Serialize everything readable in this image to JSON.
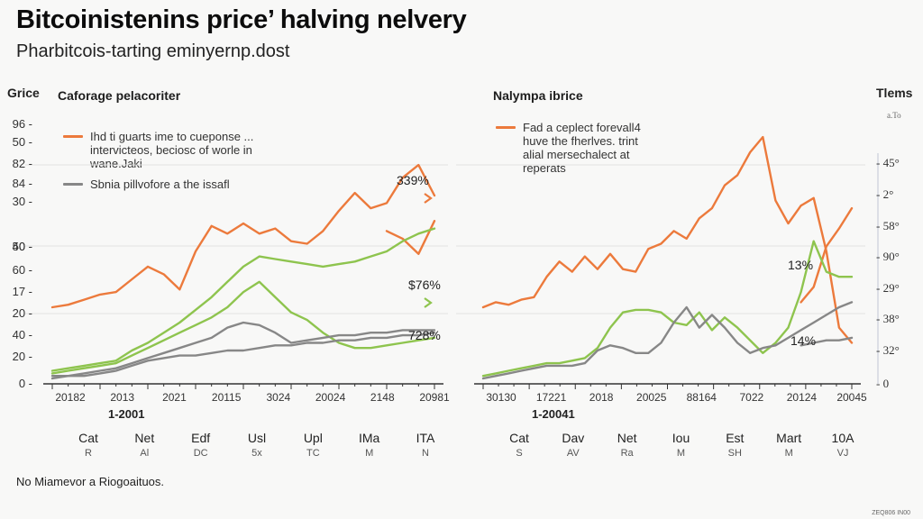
{
  "header": {
    "title": "Bitcoinistenins price’ halving nelvery",
    "subtitle": "Pharbitcois-tarting eminyernp.dost"
  },
  "footer": {
    "note": "No Miamevor a Riogoaituos.",
    "credit": "ZEQ806 IN00"
  },
  "colors": {
    "orange": "#ec7a3c",
    "green": "#8ec44e",
    "gray": "#878787",
    "grid": "#e2e2e2",
    "axis": "#333333"
  },
  "chart_data": [
    {
      "type": "line",
      "title": "Caforage pelacoriter",
      "ylabel": "Grice",
      "xlabel": "1-2001",
      "ylim": [
        0,
        100
      ],
      "grid": true,
      "legend_position": "top-left",
      "y_tick_labels": [
        "96",
        "50",
        "82",
        "84",
        "30",
        "50",
        "40",
        "60",
        "17",
        "20",
        "40",
        "20",
        "0"
      ],
      "x_tick_labels": [
        "20182",
        "2013",
        "2021",
        "20115",
        "3024",
        "20024",
        "2148",
        "20981"
      ],
      "categories": [
        {
          "name": "Cat",
          "sub": "R"
        },
        {
          "name": "Net",
          "sub": "Al"
        },
        {
          "name": "Edf",
          "sub": "DC"
        },
        {
          "name": "Usl",
          "sub": "5x"
        },
        {
          "name": "Upl",
          "sub": "TC"
        },
        {
          "name": "IMa",
          "sub": "M"
        },
        {
          "name": "ITA",
          "sub": "N"
        }
      ],
      "legend": [
        {
          "label": "Ihd ti guarts ime to cueponse ... intervicteos, beciosc of worle in wane.Jaki",
          "color_key": "orange"
        },
        {
          "label": "Sbnia pillvofore a the issafl",
          "color_key": "gray"
        }
      ],
      "annotations": [
        {
          "text": "339%",
          "series": "orange"
        },
        {
          "text": "$76%",
          "series": "green"
        },
        {
          "text": "728%",
          "series": "gray"
        }
      ],
      "x": [
        0,
        1,
        2,
        3,
        4,
        5,
        6,
        7,
        8,
        9,
        10,
        11,
        12,
        13,
        14,
        15,
        16,
        17,
        18,
        19,
        20,
        21,
        22,
        23,
        24
      ],
      "series": [
        {
          "name": "orange",
          "color_key": "orange",
          "values": [
            28,
            29,
            31,
            33,
            34,
            39,
            44,
            41,
            35,
            50,
            60,
            57,
            61,
            57,
            59,
            54,
            53,
            58,
            66,
            73,
            67,
            69,
            79,
            84,
            72
          ]
        },
        {
          "name": "orange-tail",
          "color_key": "orange",
          "x": [
            21,
            22,
            23,
            24
          ],
          "values": [
            58,
            55,
            49,
            62
          ]
        },
        {
          "name": "green-a",
          "color_key": "green",
          "values": [
            3,
            4,
            5,
            6,
            7,
            11,
            14,
            18,
            22,
            27,
            32,
            38,
            44,
            48,
            47,
            46,
            45,
            44,
            45,
            46,
            48,
            50,
            54,
            57,
            59
          ]
        },
        {
          "name": "green-b",
          "color_key": "green",
          "values": [
            2,
            3,
            4,
            5,
            6,
            9,
            12,
            15,
            18,
            21,
            24,
            28,
            34,
            38,
            32,
            26,
            23,
            18,
            14,
            12,
            12,
            13,
            14,
            15,
            16
          ]
        },
        {
          "name": "gray-a",
          "color_key": "gray",
          "values": [
            1,
            1,
            2,
            3,
            4,
            6,
            8,
            10,
            12,
            14,
            16,
            20,
            22,
            21,
            18,
            14,
            15,
            16,
            17,
            17,
            18,
            18,
            19,
            19,
            19
          ]
        },
        {
          "name": "gray-b",
          "color_key": "gray",
          "values": [
            0,
            1,
            1,
            2,
            3,
            5,
            7,
            8,
            9,
            9,
            10,
            11,
            11,
            12,
            13,
            13,
            14,
            14,
            15,
            15,
            16,
            16,
            17,
            17,
            18
          ]
        }
      ]
    },
    {
      "type": "line",
      "title": "Nalympa ibrice",
      "ylabel": "Tlems",
      "ylabel_sub": "a.To",
      "xlabel": "1-20041",
      "ylim": [
        0,
        100
      ],
      "grid": true,
      "legend_position": "top-left",
      "y_tick_labels": [
        "45°",
        "2°",
        "58°",
        "90°",
        "29°",
        "38°",
        "32°",
        "0"
      ],
      "x_tick_labels": [
        "30130",
        "17221",
        "2018",
        "20025",
        "88164",
        "7022",
        "20124",
        "20045"
      ],
      "categories": [
        {
          "name": "Cat",
          "sub": "S"
        },
        {
          "name": "Dav",
          "sub": "AV"
        },
        {
          "name": "Net",
          "sub": "Ra"
        },
        {
          "name": "Iou",
          "sub": "M"
        },
        {
          "name": "Est",
          "sub": "SH"
        },
        {
          "name": "Mart",
          "sub": "M"
        },
        {
          "name": "10A",
          "sub": "VJ"
        }
      ],
      "legend": [
        {
          "label": "Fad a ceplect forevall4 huve the fherlves. trint alial mersechalect at reperats",
          "color_key": "orange"
        }
      ],
      "annotations": [
        {
          "text": "13%",
          "series": "orange"
        },
        {
          "text": "14%",
          "series": "gray"
        }
      ],
      "x": [
        0,
        1,
        2,
        3,
        4,
        5,
        6,
        7,
        8,
        9,
        10,
        11,
        12,
        13,
        14,
        15,
        16,
        17,
        18,
        19,
        20,
        21,
        22,
        23,
        24,
        25,
        26,
        27,
        28,
        29
      ],
      "series": [
        {
          "name": "orange",
          "color_key": "orange",
          "values": [
            28,
            30,
            29,
            31,
            32,
            40,
            46,
            42,
            48,
            43,
            49,
            43,
            42,
            51,
            53,
            58,
            55,
            63,
            67,
            76,
            80,
            89,
            95,
            70,
            61,
            68,
            71,
            50,
            20,
            14
          ]
        },
        {
          "name": "orange-rebound",
          "color_key": "orange",
          "x": [
            25,
            26,
            27,
            28,
            29
          ],
          "values": [
            30,
            36,
            52,
            59,
            67
          ]
        },
        {
          "name": "green",
          "color_key": "green",
          "values": [
            1,
            2,
            3,
            4,
            5,
            6,
            6,
            7,
            8,
            12,
            20,
            26,
            27,
            27,
            26,
            22,
            21,
            26,
            19,
            24,
            20,
            15,
            10,
            14,
            20,
            34,
            54,
            42,
            40,
            40
          ]
        },
        {
          "name": "gray",
          "color_key": "gray",
          "values": [
            0,
            1,
            2,
            3,
            4,
            5,
            5,
            5,
            6,
            11,
            13,
            12,
            10,
            10,
            14,
            22,
            28,
            20,
            25,
            20,
            14,
            10,
            12,
            13,
            16,
            19,
            22,
            25,
            28,
            30
          ]
        },
        {
          "name": "gray-b",
          "color_key": "gray",
          "x": [
            25,
            26,
            27,
            28,
            29
          ],
          "values": [
            13,
            14,
            15,
            15,
            16
          ]
        }
      ]
    }
  ]
}
